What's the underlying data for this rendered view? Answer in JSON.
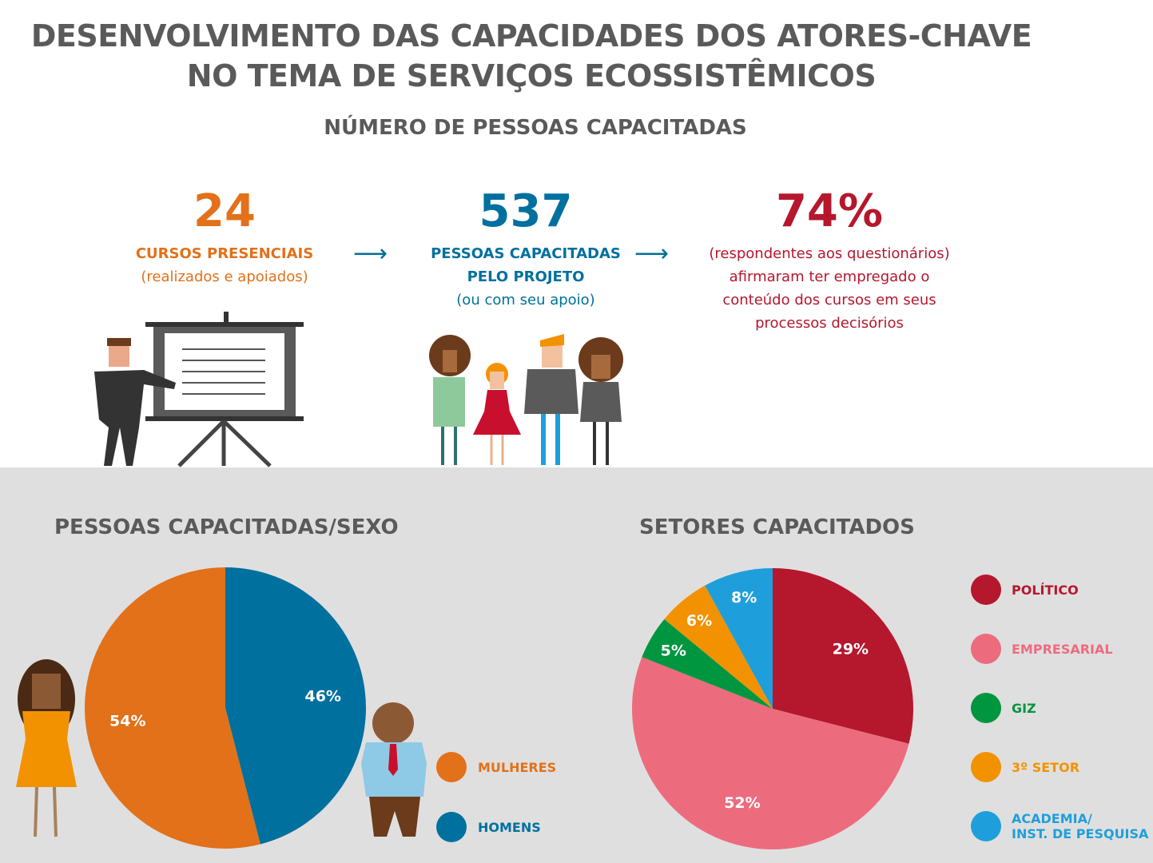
{
  "header": {
    "title_line1": "DESENVOLVIMENTO DAS CAPACIDADES DOS ATORES-CHAVE",
    "title_line2": "NO TEMA DE SERVIÇOS ECOSSISTÊMICOS",
    "subtitle": "NÚMERO DE PESSOAS CAPACITADAS"
  },
  "stats": [
    {
      "value": "24",
      "label": "CURSOS PRESENCIAIS",
      "note": "(realizados e apoiados)",
      "color": "#e2711a"
    },
    {
      "value": "537",
      "label_line1": "PESSOAS CAPACITADAS",
      "label_line2": "PELO PROJETO",
      "note": "(ou com seu apoio)",
      "color": "#00709e"
    },
    {
      "value": "74%",
      "note_lines": [
        "(respondentes aos questionários)",
        "afirmaram ter empregado o",
        "conteúdo dos cursos em seus",
        "processos decisórios"
      ],
      "color": "#b5172d"
    }
  ],
  "arrow_symbol": "⟶",
  "chart_data": [
    {
      "type": "pie",
      "title": "PESSOAS CAPACITADAS/SEXO",
      "categories": [
        "HOMENS",
        "MULHERES"
      ],
      "values": [
        46,
        54
      ],
      "labels": [
        "46%",
        "54%"
      ],
      "colors": [
        "#00709e",
        "#e2711a"
      ],
      "legend": [
        {
          "label": "MULHERES",
          "color": "#e2711a"
        },
        {
          "label": "HOMENS",
          "color": "#00709e"
        }
      ],
      "legend_position": "right"
    },
    {
      "type": "pie",
      "title": "SETORES CAPACITADOS",
      "categories": [
        "POLÍTICO",
        "EMPRESARIAL",
        "GIZ",
        "3º SETOR",
        "ACADEMIA/ INST. DE PESQUISA"
      ],
      "values": [
        29,
        52,
        5,
        6,
        8
      ],
      "labels": [
        "29%",
        "52%",
        "5%",
        "6%",
        "8%"
      ],
      "colors": [
        "#b5172d",
        "#ec6c7e",
        "#00963f",
        "#f39200",
        "#1e9fdb"
      ],
      "legend": [
        {
          "label": "POLÍTICO",
          "color": "#b5172d"
        },
        {
          "label": "EMPRESARIAL",
          "color": "#ec6c7e"
        },
        {
          "label": "GIZ",
          "color": "#00963f"
        },
        {
          "label": "3º SETOR",
          "color": "#f39200"
        },
        {
          "label_line1": "ACADEMIA/",
          "label_line2": "INST. DE PESQUISA",
          "color": "#1e9fdb"
        }
      ],
      "legend_position": "right"
    }
  ]
}
